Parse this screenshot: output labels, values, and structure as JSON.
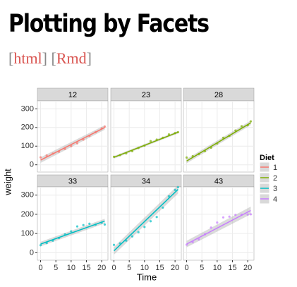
{
  "header": {
    "title": "Plotting by Facets",
    "links": [
      "html",
      "Rmd"
    ],
    "brackets": [
      "[",
      "]"
    ]
  },
  "chart_data": {
    "type": "scatter",
    "xlabel": "Time",
    "ylabel": "weight",
    "legend_title": "Diet",
    "xlim": [
      -1.05,
      22.05
    ],
    "ylim": [
      -39,
      343
    ],
    "xticks": [
      0,
      5,
      10,
      15,
      20
    ],
    "yticks": [
      0,
      100,
      200,
      300
    ],
    "grid": true,
    "series": [
      {
        "name": "1",
        "color": "#f8766d"
      },
      {
        "name": "2",
        "color": "#7cae00"
      },
      {
        "name": "3",
        "color": "#00bfc4"
      },
      {
        "name": "4",
        "color": "#c77cff"
      }
    ],
    "facets": [
      {
        "title": "12",
        "color": "#f8766d",
        "x": [
          0,
          2,
          4,
          6,
          8,
          10,
          12,
          14,
          16,
          18,
          20,
          21
        ],
        "y": [
          40,
          50,
          60,
          70,
          85,
          100,
          115,
          135,
          155,
          175,
          195,
          205
        ],
        "fit_x": [
          0,
          21
        ],
        "fit_y": [
          25,
          200
        ],
        "fit_lo": [
          10,
          188
        ],
        "fit_hi": [
          40,
          212
        ]
      },
      {
        "title": "23",
        "color": "#7cae00",
        "x": [
          0,
          2,
          4,
          6,
          8,
          10,
          12,
          14,
          16,
          18,
          20,
          21
        ],
        "y": [
          43,
          52,
          61,
          73,
          90,
          103,
          127,
          135,
          145,
          163,
          170,
          175
        ],
        "fit_x": [
          0,
          21
        ],
        "fit_y": [
          40,
          175
        ],
        "fit_lo": [
          33,
          168
        ],
        "fit_hi": [
          47,
          182
        ]
      },
      {
        "title": "28",
        "color": "#7cae00",
        "x": [
          0,
          2,
          4,
          6,
          8,
          10,
          12,
          14,
          16,
          18,
          20,
          21
        ],
        "y": [
          39,
          46,
          58,
          73,
          92,
          114,
          145,
          156,
          184,
          207,
          212,
          233
        ],
        "fit_x": [
          0,
          21
        ],
        "fit_y": [
          20,
          225
        ],
        "fit_lo": [
          8,
          213
        ],
        "fit_hi": [
          32,
          237
        ]
      },
      {
        "title": "33",
        "color": "#00bfc4",
        "x": [
          0,
          2,
          4,
          6,
          8,
          10,
          12,
          14,
          16,
          18,
          20,
          21
        ],
        "y": [
          39,
          50,
          63,
          77,
          96,
          111,
          137,
          144,
          151,
          146,
          156,
          147
        ],
        "fit_x": [
          0,
          21
        ],
        "fit_y": [
          45,
          165
        ],
        "fit_lo": [
          33,
          153
        ],
        "fit_hi": [
          57,
          177
        ]
      },
      {
        "title": "34",
        "color": "#00bfc4",
        "x": [
          0,
          2,
          4,
          6,
          8,
          10,
          12,
          14,
          16,
          18,
          20,
          21
        ],
        "y": [
          41,
          49,
          63,
          85,
          107,
          134,
          164,
          186,
          235,
          294,
          327,
          341
        ],
        "fit_x": [
          0,
          21
        ],
        "fit_y": [
          10,
          330
        ],
        "fit_lo": [
          -10,
          308
        ],
        "fit_hi": [
          30,
          352
        ]
      },
      {
        "title": "43",
        "color": "#c77cff",
        "x": [
          0,
          2,
          4,
          6,
          8,
          10,
          12,
          14,
          16,
          18,
          20,
          21
        ],
        "y": [
          42,
          55,
          69,
          96,
          131,
          157,
          184,
          188,
          197,
          198,
          199,
          200
        ],
        "fit_x": [
          0,
          21
        ],
        "fit_y": [
          45,
          220
        ],
        "fit_lo": [
          28,
          200
        ],
        "fit_hi": [
          62,
          240
        ]
      }
    ]
  }
}
